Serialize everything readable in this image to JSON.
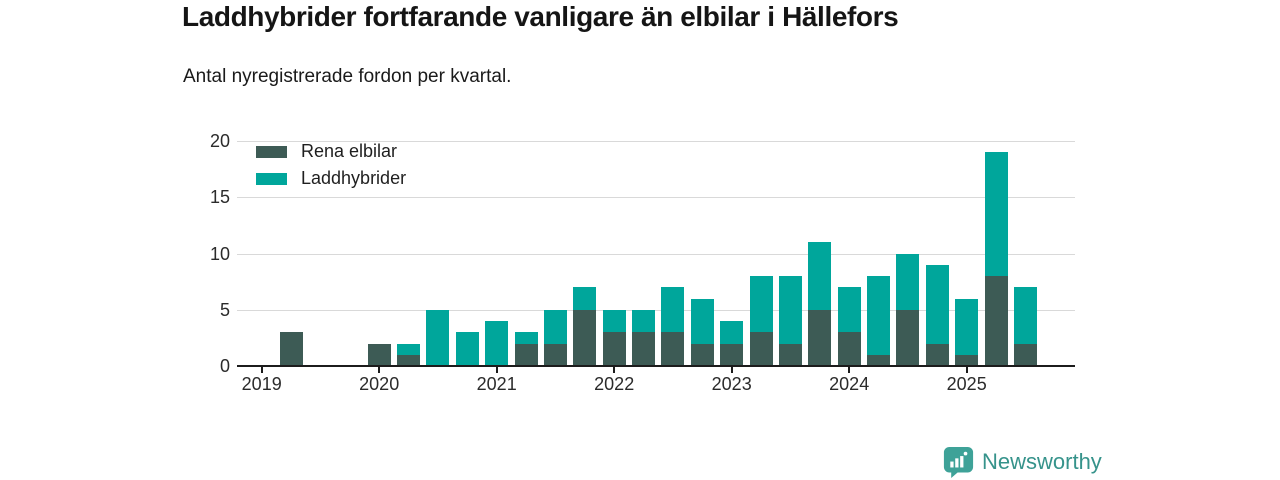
{
  "header": {
    "title": "Laddhybrider fortfarande vanligare än elbilar i Hällefors",
    "subtitle": "Antal nyregistrerade fordon per kvartal."
  },
  "colors": {
    "electric": "#3d5b55",
    "hybrid": "#00a69b",
    "grid": "#d9d9d9",
    "axis": "#1c1c1c",
    "logo": "#36938b"
  },
  "chart_data": {
    "type": "bar",
    "stacked": true,
    "title": "Laddhybrider fortfarande vanligare än elbilar i Hällefors",
    "subtitle": "Antal nyregistrerade fordon per kvartal.",
    "categories": [
      "2019-Q1",
      "2019-Q2",
      "2019-Q3",
      "2019-Q4",
      "2020-Q1",
      "2020-Q2",
      "2020-Q3",
      "2020-Q4",
      "2021-Q1",
      "2021-Q2",
      "2021-Q3",
      "2021-Q4",
      "2022-Q1",
      "2022-Q2",
      "2022-Q3",
      "2022-Q4",
      "2023-Q1",
      "2023-Q2",
      "2023-Q3",
      "2023-Q4",
      "2024-Q1",
      "2024-Q2",
      "2024-Q3",
      "2024-Q4",
      "2025-Q1",
      "2025-Q2",
      "2025-Q3"
    ],
    "series": [
      {
        "name": "Rena elbilar",
        "color": "#3d5b55",
        "values": [
          0,
          3,
          0,
          0,
          2,
          1,
          0,
          0,
          0,
          2,
          2,
          5,
          3,
          3,
          3,
          2,
          2,
          3,
          2,
          5,
          3,
          1,
          5,
          2,
          1,
          8,
          2
        ]
      },
      {
        "name": "Laddhybrider",
        "color": "#00a69b",
        "values": [
          0,
          0,
          0,
          0,
          0,
          1,
          5,
          3,
          4,
          1,
          3,
          2,
          2,
          2,
          4,
          4,
          2,
          5,
          6,
          6,
          4,
          7,
          5,
          7,
          5,
          11,
          5
        ]
      }
    ],
    "totals": [
      0,
      3,
      0,
      0,
      2,
      2,
      5,
      3,
      4,
      3,
      5,
      7,
      5,
      5,
      7,
      6,
      4,
      8,
      8,
      11,
      7,
      8,
      10,
      9,
      6,
      19,
      7
    ],
    "x_tick_labels": [
      "2019",
      "2020",
      "2021",
      "2022",
      "2023",
      "2024",
      "2025"
    ],
    "y_ticks": [
      0,
      5,
      10,
      15,
      20
    ],
    "ylim": [
      0,
      20
    ],
    "grid": true,
    "legend_position": "top-left"
  },
  "footer": {
    "brand": "Newsworthy"
  }
}
